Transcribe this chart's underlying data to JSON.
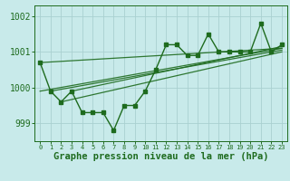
{
  "title": "Graphe pression niveau de la mer (hPa)",
  "x": [
    0,
    1,
    2,
    3,
    4,
    5,
    6,
    7,
    8,
    9,
    10,
    11,
    12,
    13,
    14,
    15,
    16,
    17,
    18,
    19,
    20,
    21,
    22,
    23
  ],
  "y_main": [
    1000.7,
    999.9,
    999.6,
    999.9,
    999.3,
    999.3,
    999.3,
    998.8,
    999.5,
    999.5,
    999.9,
    1000.5,
    1001.2,
    1001.2,
    1000.9,
    1000.9,
    1001.5,
    1001.0,
    1001.0,
    1001.0,
    1001.0,
    1001.8,
    1001.0,
    1001.2
  ],
  "trend_lines": [
    [
      0,
      1000.7,
      23,
      1001.1
    ],
    [
      0,
      999.9,
      23,
      1001.1
    ],
    [
      1,
      999.9,
      23,
      1001.05
    ],
    [
      2,
      999.6,
      23,
      1001.0
    ],
    [
      3,
      999.9,
      23,
      1001.15
    ]
  ],
  "ylim": [
    998.5,
    1002.3
  ],
  "yticks": [
    999,
    1000,
    1001,
    1002
  ],
  "line_color": "#1e6b1e",
  "bg_color": "#c8eaea",
  "grid_color": "#aad0d0",
  "label_color": "#1e6b1e",
  "tick_color": "#1e6b1e",
  "font_size": 7.0,
  "xlabel_size": 7.5
}
